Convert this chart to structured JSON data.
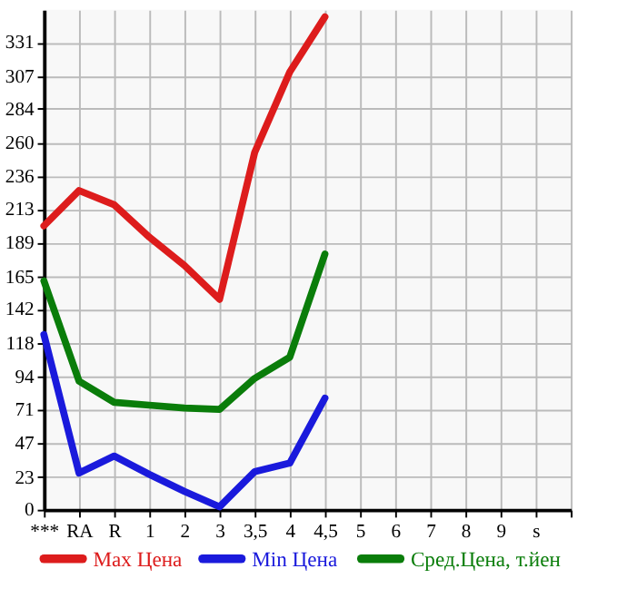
{
  "chart_data": {
    "type": "line",
    "categories": [
      "***",
      "RA",
      "R",
      "1",
      "2",
      "3",
      "3,5",
      "4",
      "4,5",
      "5",
      "6",
      "7",
      "8",
      "9",
      "s"
    ],
    "series": [
      {
        "name": "Max Цена",
        "color": "#dd1c1c",
        "values": [
          201,
          226,
          216,
          193,
          173,
          149,
          253,
          310,
          349,
          null,
          null,
          null,
          null,
          null,
          null
        ]
      },
      {
        "name": "Min Цена",
        "color": "#1a1adc",
        "values": [
          124,
          26,
          38,
          25,
          13,
          2,
          27,
          33,
          79,
          null,
          null,
          null,
          null,
          null,
          null
        ]
      },
      {
        "name": "Сред.Цена, т.йен",
        "color": "#0a7d0a",
        "values": [
          162,
          91,
          76,
          74,
          72,
          71,
          93,
          108,
          181,
          null,
          null,
          null,
          null,
          null,
          null
        ]
      }
    ],
    "ylim": [
      0,
      354
    ],
    "yticks": [
      0,
      23,
      47,
      71,
      94,
      118,
      142,
      165,
      189,
      213,
      236,
      260,
      284,
      307,
      331
    ],
    "grid": true,
    "legend": "bottom",
    "marker": "none",
    "line_style": "solid"
  }
}
